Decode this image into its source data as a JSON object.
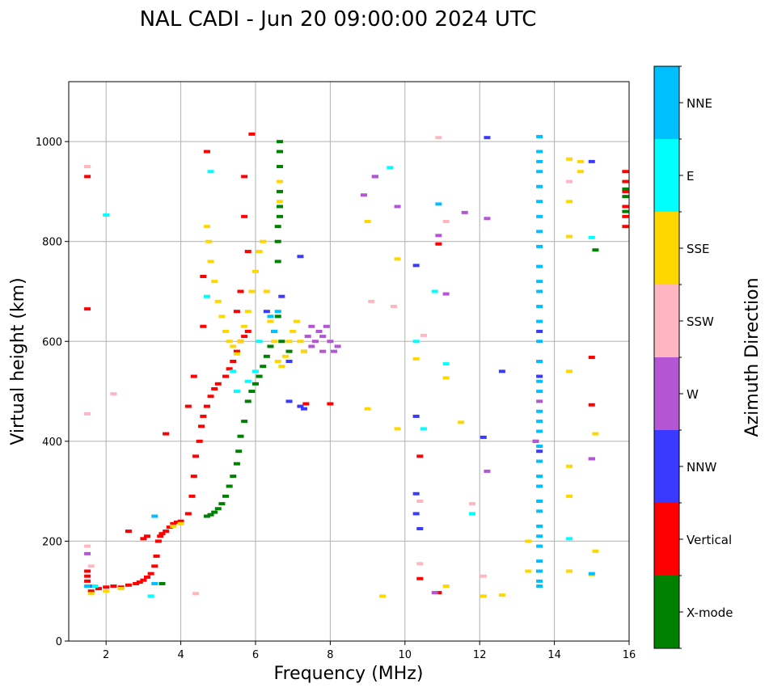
{
  "chart_data": {
    "type": "scatter",
    "title": "NAL CADI - Jun 20 09:00:00 2024 UTC",
    "xlabel": "Frequency (MHz)",
    "ylabel": "Virtual height (km)",
    "xlim": [
      1.0,
      16.0
    ],
    "ylim": [
      0,
      1120
    ],
    "x_ticks": [
      2,
      4,
      6,
      8,
      10,
      12,
      14,
      16
    ],
    "y_ticks": [
      0,
      200,
      400,
      600,
      800,
      1000
    ],
    "grid": true,
    "colorbar": {
      "label": "Azimuth Direction",
      "categories": [
        {
          "name": "X-mode",
          "color": "#008000"
        },
        {
          "name": "Vertical",
          "color": "#ff0000"
        },
        {
          "name": "NNW",
          "color": "#3a3aff"
        },
        {
          "name": "W",
          "color": "#b455d4"
        },
        {
          "name": "SSW",
          "color": "#ffb6c1"
        },
        {
          "name": "SSE",
          "color": "#ffd700"
        },
        {
          "name": "E",
          "color": "#00ffff"
        },
        {
          "name": "NNE",
          "color": "#00bfff"
        }
      ]
    },
    "series": [
      {
        "name": "Vertical",
        "points": [
          [
            1.5,
            140
          ],
          [
            1.5,
            130
          ],
          [
            1.5,
            120
          ],
          [
            1.55,
            110
          ],
          [
            1.6,
            100
          ],
          [
            1.8,
            105
          ],
          [
            2.0,
            108
          ],
          [
            2.2,
            110
          ],
          [
            2.4,
            108
          ],
          [
            2.6,
            112
          ],
          [
            2.8,
            115
          ],
          [
            2.9,
            118
          ],
          [
            3.0,
            122
          ],
          [
            3.1,
            128
          ],
          [
            3.2,
            135
          ],
          [
            3.3,
            150
          ],
          [
            3.35,
            170
          ],
          [
            3.4,
            200
          ],
          [
            3.45,
            210
          ],
          [
            3.5,
            215
          ],
          [
            3.6,
            220
          ],
          [
            3.7,
            228
          ],
          [
            3.8,
            235
          ],
          [
            3.9,
            238
          ],
          [
            4.0,
            240
          ],
          [
            4.2,
            255
          ],
          [
            4.3,
            290
          ],
          [
            4.35,
            330
          ],
          [
            4.4,
            370
          ],
          [
            4.5,
            400
          ],
          [
            4.55,
            430
          ],
          [
            4.6,
            450
          ],
          [
            4.7,
            470
          ],
          [
            4.8,
            490
          ],
          [
            4.9,
            505
          ],
          [
            5.0,
            515
          ],
          [
            5.2,
            530
          ],
          [
            5.3,
            545
          ],
          [
            5.4,
            560
          ],
          [
            5.5,
            580
          ],
          [
            5.6,
            600
          ],
          [
            5.7,
            610
          ],
          [
            5.8,
            620
          ],
          [
            3.0,
            205
          ],
          [
            3.1,
            210
          ],
          [
            2.6,
            220
          ],
          [
            3.6,
            415
          ],
          [
            4.2,
            470
          ],
          [
            4.35,
            530
          ],
          [
            4.6,
            630
          ],
          [
            4.6,
            730
          ],
          [
            4.7,
            980
          ],
          [
            1.5,
            665
          ],
          [
            1.5,
            930
          ],
          [
            5.9,
            1015
          ],
          [
            5.7,
            930
          ],
          [
            5.7,
            850
          ],
          [
            5.8,
            780
          ],
          [
            5.6,
            700
          ],
          [
            5.5,
            660
          ],
          [
            10.4,
            370
          ],
          [
            10.4,
            125
          ],
          [
            10.9,
            97
          ],
          [
            15.0,
            568
          ],
          [
            15.0,
            473
          ],
          [
            7.35,
            475
          ],
          [
            8.0,
            475
          ],
          [
            10.9,
            795
          ],
          [
            15.9,
            850
          ],
          [
            15.9,
            870
          ],
          [
            15.9,
            900
          ],
          [
            15.9,
            920
          ],
          [
            15.9,
            940
          ],
          [
            15.9,
            830
          ]
        ]
      },
      {
        "name": "X-mode",
        "points": [
          [
            3.5,
            115
          ],
          [
            4.7,
            250
          ],
          [
            4.8,
            253
          ],
          [
            4.9,
            258
          ],
          [
            5.0,
            265
          ],
          [
            5.1,
            275
          ],
          [
            5.2,
            290
          ],
          [
            5.3,
            310
          ],
          [
            5.4,
            330
          ],
          [
            5.5,
            355
          ],
          [
            5.55,
            380
          ],
          [
            5.6,
            410
          ],
          [
            5.7,
            440
          ],
          [
            5.8,
            480
          ],
          [
            5.9,
            500
          ],
          [
            6.0,
            515
          ],
          [
            6.1,
            530
          ],
          [
            6.2,
            550
          ],
          [
            6.3,
            570
          ],
          [
            6.4,
            590
          ],
          [
            6.5,
            620
          ],
          [
            6.6,
            650
          ],
          [
            6.7,
            600
          ],
          [
            6.6,
            760
          ],
          [
            6.6,
            800
          ],
          [
            6.65,
            850
          ],
          [
            6.65,
            900
          ],
          [
            6.65,
            950
          ],
          [
            6.65,
            1000
          ],
          [
            6.65,
            980
          ],
          [
            6.65,
            870
          ],
          [
            6.6,
            830
          ],
          [
            6.9,
            580
          ],
          [
            15.1,
            783
          ],
          [
            15.9,
            860
          ],
          [
            15.9,
            890
          ],
          [
            15.9,
            905
          ]
        ]
      },
      {
        "name": "NNW",
        "points": [
          [
            1.6,
            110
          ],
          [
            7.3,
            465
          ],
          [
            7.2,
            470
          ],
          [
            6.9,
            480
          ],
          [
            6.9,
            560
          ],
          [
            10.3,
            450
          ],
          [
            10.3,
            295
          ],
          [
            10.3,
            255
          ],
          [
            10.4,
            225
          ],
          [
            12.1,
            408
          ],
          [
            12.6,
            540
          ],
          [
            13.6,
            620
          ],
          [
            13.6,
            530
          ],
          [
            13.6,
            380
          ],
          [
            13.6,
            140
          ],
          [
            13.5,
            400
          ],
          [
            15.0,
            365
          ],
          [
            12.2,
            1008
          ],
          [
            15.0,
            960
          ],
          [
            9.2,
            930
          ],
          [
            10.3,
            752
          ],
          [
            7.2,
            770
          ],
          [
            6.7,
            690
          ],
          [
            6.3,
            660
          ]
        ]
      },
      {
        "name": "W",
        "points": [
          [
            1.5,
            175
          ],
          [
            7.4,
            610
          ],
          [
            7.5,
            590
          ],
          [
            7.6,
            600
          ],
          [
            7.7,
            620
          ],
          [
            7.8,
            610
          ],
          [
            7.9,
            630
          ],
          [
            8.0,
            600
          ],
          [
            8.1,
            580
          ],
          [
            8.2,
            590
          ],
          [
            7.5,
            630
          ],
          [
            7.3,
            580
          ],
          [
            7.8,
            580
          ],
          [
            12.2,
            340
          ],
          [
            13.5,
            400
          ],
          [
            13.6,
            480
          ],
          [
            15.0,
            365
          ],
          [
            10.8,
            97
          ],
          [
            11.1,
            695
          ],
          [
            11.6,
            858
          ],
          [
            12.2,
            846
          ],
          [
            10.9,
            812
          ],
          [
            9.2,
            930
          ],
          [
            8.9,
            893
          ],
          [
            9.8,
            870
          ]
        ]
      },
      {
        "name": "SSW",
        "points": [
          [
            1.5,
            190
          ],
          [
            1.5,
            455
          ],
          [
            1.5,
            950
          ],
          [
            1.6,
            150
          ],
          [
            2.2,
            495
          ],
          [
            4.4,
            95
          ],
          [
            10.4,
            280
          ],
          [
            10.4,
            155
          ],
          [
            10.5,
            612
          ],
          [
            12.1,
            130
          ],
          [
            11.8,
            275
          ],
          [
            14.4,
            920
          ],
          [
            10.9,
            1008
          ],
          [
            11.1,
            840
          ],
          [
            9.1,
            680
          ],
          [
            9.7,
            670
          ]
        ]
      },
      {
        "name": "SSE",
        "points": [
          [
            1.6,
            95
          ],
          [
            2.0,
            100
          ],
          [
            2.4,
            105
          ],
          [
            3.8,
            230
          ],
          [
            4.0,
            235
          ],
          [
            4.7,
            830
          ],
          [
            4.75,
            800
          ],
          [
            4.8,
            760
          ],
          [
            4.9,
            720
          ],
          [
            5.0,
            680
          ],
          [
            5.1,
            650
          ],
          [
            5.2,
            620
          ],
          [
            5.3,
            600
          ],
          [
            5.4,
            590
          ],
          [
            5.5,
            575
          ],
          [
            5.6,
            600
          ],
          [
            5.7,
            630
          ],
          [
            5.8,
            660
          ],
          [
            5.9,
            700
          ],
          [
            6.0,
            740
          ],
          [
            6.1,
            780
          ],
          [
            6.2,
            800
          ],
          [
            6.3,
            700
          ],
          [
            6.4,
            640
          ],
          [
            6.5,
            600
          ],
          [
            6.6,
            560
          ],
          [
            6.7,
            550
          ],
          [
            6.8,
            570
          ],
          [
            6.9,
            600
          ],
          [
            7.0,
            620
          ],
          [
            7.1,
            640
          ],
          [
            7.2,
            600
          ],
          [
            7.3,
            580
          ],
          [
            9.0,
            465
          ],
          [
            9.0,
            840
          ],
          [
            9.8,
            765
          ],
          [
            9.8,
            425
          ],
          [
            9.4,
            90
          ],
          [
            10.3,
            565
          ],
          [
            11.1,
            527
          ],
          [
            11.5,
            438
          ],
          [
            11.1,
            110
          ],
          [
            12.1,
            90
          ],
          [
            12.6,
            92
          ],
          [
            13.3,
            140
          ],
          [
            13.3,
            200
          ],
          [
            14.4,
            140
          ],
          [
            14.4,
            290
          ],
          [
            14.4,
            350
          ],
          [
            14.4,
            540
          ],
          [
            14.4,
            810
          ],
          [
            14.4,
            880
          ],
          [
            14.4,
            965
          ],
          [
            14.7,
            940
          ],
          [
            14.7,
            960
          ],
          [
            15.1,
            415
          ],
          [
            15.1,
            180
          ],
          [
            15.0,
            133
          ],
          [
            6.65,
            880
          ],
          [
            6.65,
            920
          ]
        ]
      },
      {
        "name": "E",
        "points": [
          [
            1.7,
            110
          ],
          [
            3.2,
            90
          ],
          [
            5.4,
            540
          ],
          [
            5.5,
            500
          ],
          [
            5.8,
            520
          ],
          [
            6.0,
            540
          ],
          [
            6.1,
            600
          ],
          [
            10.3,
            600
          ],
          [
            10.5,
            425
          ],
          [
            11.1,
            555
          ],
          [
            11.8,
            255
          ],
          [
            14.4,
            205
          ],
          [
            15.0,
            808
          ],
          [
            2.0,
            853
          ],
          [
            9.6,
            948
          ],
          [
            10.8,
            700
          ],
          [
            4.7,
            690
          ],
          [
            4.8,
            940
          ]
        ]
      },
      {
        "name": "NNE",
        "points": [
          [
            1.5,
            110
          ],
          [
            3.3,
            115
          ],
          [
            3.3,
            250
          ],
          [
            13.6,
            110
          ],
          [
            13.6,
            120
          ],
          [
            13.6,
            140
          ],
          [
            13.6,
            160
          ],
          [
            13.6,
            190
          ],
          [
            13.6,
            210
          ],
          [
            13.6,
            230
          ],
          [
            13.6,
            260
          ],
          [
            13.6,
            280
          ],
          [
            13.6,
            310
          ],
          [
            13.6,
            330
          ],
          [
            13.6,
            360
          ],
          [
            13.6,
            390
          ],
          [
            13.6,
            420
          ],
          [
            13.6,
            440
          ],
          [
            13.6,
            460
          ],
          [
            13.6,
            500
          ],
          [
            13.6,
            520
          ],
          [
            13.6,
            560
          ],
          [
            13.6,
            600
          ],
          [
            13.6,
            640
          ],
          [
            13.6,
            670
          ],
          [
            13.6,
            700
          ],
          [
            13.6,
            720
          ],
          [
            13.6,
            750
          ],
          [
            13.6,
            790
          ],
          [
            13.6,
            820
          ],
          [
            13.6,
            850
          ],
          [
            13.6,
            880
          ],
          [
            13.6,
            910
          ],
          [
            13.6,
            940
          ],
          [
            13.6,
            960
          ],
          [
            13.6,
            980
          ],
          [
            13.6,
            1010
          ],
          [
            6.6,
            660
          ],
          [
            6.4,
            650
          ],
          [
            6.5,
            620
          ],
          [
            10.9,
            875
          ],
          [
            15.0,
            135
          ]
        ]
      }
    ]
  }
}
